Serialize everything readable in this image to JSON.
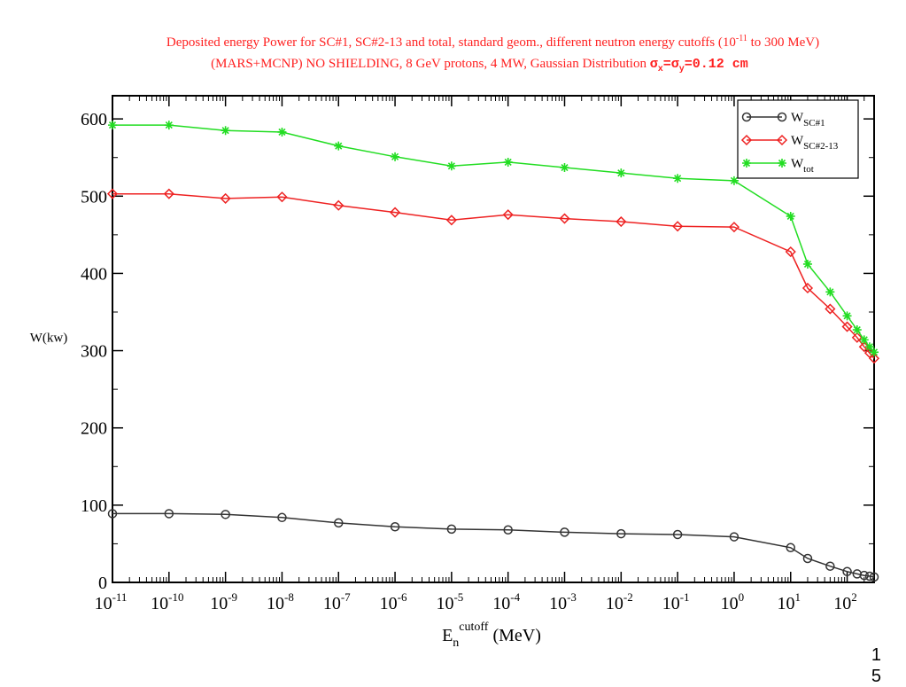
{
  "title": {
    "line1_before": "Deposited energy Power for SC#1, SC#2-13 and total, standard geom., different neutron energy cutoffs (10",
    "line1_sup": "-11",
    "line1_after": " to 300 MeV)",
    "line2_text": "(MARS+MCNP)  NO SHIELDING, 8 GeV protons, 4 MW, Gaussian Distribution ",
    "line2_formula": "σx=σy=0.12 cm"
  },
  "slide_number": [
    "1",
    "5"
  ],
  "colors": {
    "title": "#ff2020",
    "axis": "#000000",
    "series_sc1": "#333333",
    "series_sc2_13": "#ee2222",
    "series_tot": "#22dd22"
  },
  "chart_data": {
    "type": "line",
    "xscale": "log",
    "xlim": [
      1e-11,
      300
    ],
    "ylim": [
      0,
      630
    ],
    "xlabel": "E_n^cutoff (MeV)",
    "ylabel": "W(kw)",
    "yticks": [
      0,
      100,
      200,
      300,
      400,
      500,
      600
    ],
    "xtick_exponents": [
      -11,
      -10,
      -9,
      -8,
      -7,
      -6,
      -5,
      -4,
      -3,
      -2,
      -1,
      0,
      1,
      2
    ],
    "legend_position": "top-right",
    "x": [
      1e-11,
      1e-10,
      1e-09,
      1e-08,
      1e-07,
      1e-06,
      1e-05,
      0.0001,
      0.001,
      0.01,
      0.1,
      1,
      10,
      20,
      50,
      100,
      150,
      200,
      250,
      300
    ],
    "series": [
      {
        "name": "W_SC#1",
        "name_base": "W",
        "name_sub": "SC#1",
        "marker": "circle",
        "color": "#333333",
        "values": [
          89,
          89,
          88,
          84,
          77,
          72,
          69,
          68,
          65,
          63,
          62,
          59,
          45,
          31,
          21,
          14,
          11,
          9,
          8,
          7
        ]
      },
      {
        "name": "W_SC#2-13",
        "name_base": "W",
        "name_sub": "SC#2-13",
        "marker": "diamond",
        "color": "#ee2222",
        "values": [
          503,
          503,
          497,
          499,
          488,
          479,
          469,
          476,
          471,
          467,
          461,
          460,
          428,
          381,
          354,
          331,
          317,
          305,
          297,
          290
        ]
      },
      {
        "name": "W_tot",
        "name_base": "W",
        "name_sub": "tot",
        "marker": "star",
        "color": "#22dd22",
        "values": [
          592,
          592,
          585,
          583,
          565,
          551,
          539,
          544,
          537,
          530,
          523,
          520,
          474,
          412,
          376,
          345,
          327,
          314,
          305,
          298
        ]
      }
    ]
  }
}
